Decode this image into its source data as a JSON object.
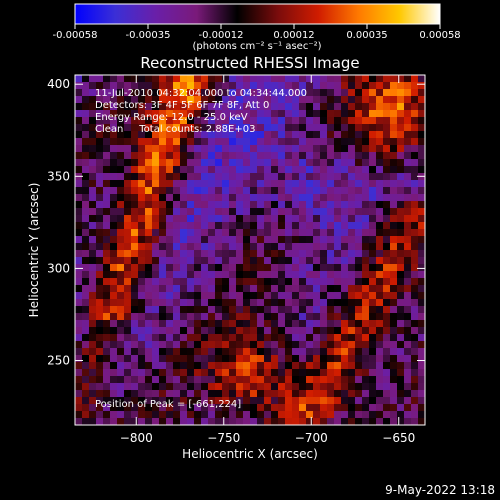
{
  "colors": {
    "background": "#000000",
    "foreground": "#ffffff",
    "colormap": [
      "#0000ff",
      "#3b2fd6",
      "#6a1fa8",
      "#7a1a7a",
      "#000000",
      "#7a0c0c",
      "#d01c00",
      "#ff7a00",
      "#ffc800",
      "#ffffff"
    ]
  },
  "colorbar": {
    "tick_labels": [
      "-0.00058",
      "-0.00035",
      "-0.00012",
      "0.00012",
      "0.00035",
      "0.00058"
    ],
    "units_label": "(photons cm⁻² s⁻¹ asec⁻²)",
    "range": [
      -0.00058,
      0.00058
    ]
  },
  "chart_data": {
    "type": "heatmap",
    "title": "Reconstructed RHESSI Image",
    "xlabel": "Heliocentric X (arcsec)",
    "ylabel": "Heliocentric Y (arcsec)",
    "xlim": [
      -835,
      -635
    ],
    "ylim": [
      215,
      405
    ],
    "x_tick_labels": [
      "−800",
      "−750",
      "−700",
      "−650"
    ],
    "x_ticks": [
      -800,
      -750,
      -700,
      -650
    ],
    "y_tick_labels": [
      "250",
      "300",
      "350",
      "400"
    ],
    "y_ticks": [
      250,
      300,
      350,
      400
    ],
    "annotations": [
      "11-Jul-2010 04:32:04.000 to 04:34:44.000",
      "Detectors: 3F 4F 5F 6F 7F 8F, Att 0",
      "Energy Range: 12.0 - 25.0 keV",
      "Clean     Total counts: 2.88E+03"
    ],
    "peak_label": "Position of Peak = [-661,224]",
    "peak_position": [
      -661,
      224
    ],
    "grid": false
  },
  "footer": {
    "timestamp": "9-May-2022 13:18"
  }
}
